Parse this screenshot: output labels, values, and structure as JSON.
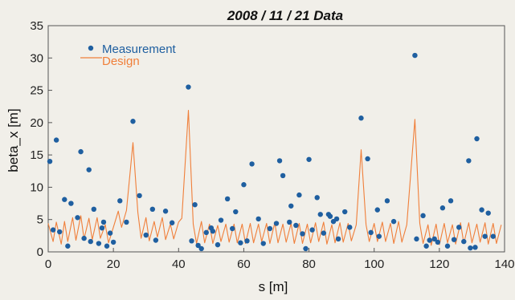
{
  "chart_data": {
    "type": "scatter",
    "title": "2008 / 11 / 21 Data",
    "xlabel": "s [m]",
    "ylabel": "beta_x [m]",
    "xlim": [
      0,
      140
    ],
    "ylim": [
      0,
      35
    ],
    "x_ticks": [
      0,
      20,
      40,
      60,
      80,
      100,
      120,
      140
    ],
    "y_ticks": [
      0,
      5,
      10,
      15,
      20,
      25,
      30,
      35
    ],
    "grid": false,
    "legend_position": "top-left",
    "series": [
      {
        "name": "Measurement",
        "kind": "scatter",
        "color": "#1f5fa0",
        "points": [
          [
            0.5,
            14
          ],
          [
            1.5,
            3.4
          ],
          [
            2.5,
            17.3
          ],
          [
            3.5,
            3.1
          ],
          [
            5,
            8.1
          ],
          [
            6,
            0.9
          ],
          [
            7,
            7.5
          ],
          [
            9,
            5.3
          ],
          [
            10,
            15.5
          ],
          [
            11,
            2.1
          ],
          [
            12.5,
            12.7
          ],
          [
            13,
            1.6
          ],
          [
            14,
            6.6
          ],
          [
            15.5,
            1.3
          ],
          [
            16.5,
            3.7
          ],
          [
            17,
            4.6
          ],
          [
            18,
            0.9
          ],
          [
            19,
            2.9
          ],
          [
            20,
            1.5
          ],
          [
            22,
            7.9
          ],
          [
            24,
            4.6
          ],
          [
            26,
            20.2
          ],
          [
            28,
            8.7
          ],
          [
            30,
            2.6
          ],
          [
            32,
            6.6
          ],
          [
            33,
            1.8
          ],
          [
            36,
            6.3
          ],
          [
            38,
            4.5
          ],
          [
            43,
            25.5
          ],
          [
            44,
            1.7
          ],
          [
            45,
            7.3
          ],
          [
            46,
            1.0
          ],
          [
            47,
            0.5
          ],
          [
            48.5,
            3.0
          ],
          [
            50,
            3.7
          ],
          [
            50.5,
            3.2
          ],
          [
            52,
            1.1
          ],
          [
            53,
            4.9
          ],
          [
            55,
            8.2
          ],
          [
            56.5,
            3.6
          ],
          [
            57.5,
            6.2
          ],
          [
            59,
            1.4
          ],
          [
            60,
            10.4
          ],
          [
            61,
            1.7
          ],
          [
            62.5,
            13.6
          ],
          [
            64.5,
            5.1
          ],
          [
            66,
            1.3
          ],
          [
            68,
            3.6
          ],
          [
            70,
            4.4
          ],
          [
            71,
            14.1
          ],
          [
            72,
            11.8
          ],
          [
            74,
            4.6
          ],
          [
            74.5,
            7.1
          ],
          [
            76,
            4.1
          ],
          [
            77,
            8.8
          ],
          [
            78,
            2.8
          ],
          [
            79,
            0.5
          ],
          [
            80,
            14.3
          ],
          [
            81,
            3.4
          ],
          [
            82.5,
            8.4
          ],
          [
            83.5,
            5.8
          ],
          [
            84.5,
            2.9
          ],
          [
            86,
            5.8
          ],
          [
            86.5,
            5.5
          ],
          [
            87.5,
            4.7
          ],
          [
            88.5,
            5.1
          ],
          [
            89,
            2.0
          ],
          [
            91,
            6.2
          ],
          [
            92.5,
            3.8
          ],
          [
            96,
            20.7
          ],
          [
            98,
            14.4
          ],
          [
            99,
            3.0
          ],
          [
            101,
            6.5
          ],
          [
            101.5,
            2.4
          ],
          [
            104,
            7.9
          ],
          [
            106,
            4.7
          ],
          [
            112.5,
            30.4
          ],
          [
            113,
            2.0
          ],
          [
            115,
            5.6
          ],
          [
            116,
            0.9
          ],
          [
            117,
            1.8
          ],
          [
            118.5,
            2.0
          ],
          [
            119.5,
            1.5
          ],
          [
            121,
            6.8
          ],
          [
            122.5,
            0.9
          ],
          [
            123.5,
            7.9
          ],
          [
            124.5,
            1.9
          ],
          [
            126,
            3.8
          ],
          [
            127.5,
            1.6
          ],
          [
            129,
            14.1
          ],
          [
            129.5,
            0.6
          ],
          [
            131,
            0.7
          ],
          [
            131.5,
            17.5
          ],
          [
            133,
            6.5
          ],
          [
            134,
            2.4
          ],
          [
            135,
            6.0
          ],
          [
            136.5,
            2.4
          ]
        ]
      },
      {
        "name": "Design",
        "kind": "line",
        "color": "#f07f3a",
        "x": [
          0,
          1.5,
          2.5,
          4,
          5,
          6,
          7.5,
          8.5,
          10,
          11,
          12.5,
          13.5,
          15,
          16,
          17.5,
          18.5,
          20,
          21.5,
          22.5,
          24,
          26,
          27.5,
          28.5,
          30,
          31,
          32.5,
          33.5,
          35,
          36,
          37.5,
          38.5,
          40,
          41,
          43,
          44.5,
          45.5,
          47,
          48,
          49.5,
          50.5,
          52,
          53,
          54.5,
          55.5,
          57,
          58,
          59.5,
          60.5,
          62,
          63,
          64.5,
          65.5,
          67,
          68,
          69.5,
          70.5,
          72,
          73,
          74.5,
          75.5,
          77,
          78,
          79.5,
          80.5,
          82,
          83,
          84.5,
          85.5,
          87,
          88,
          89.5,
          90.5,
          92,
          93,
          94.5,
          96,
          97.5,
          98.5,
          100,
          101,
          102.5,
          103.5,
          105,
          106,
          107.5,
          108.5,
          110,
          112.5,
          114,
          115,
          116.5,
          117.5,
          119,
          120,
          121.5,
          122.5,
          124,
          125,
          126.5,
          127.5,
          129,
          130,
          131.5,
          132.5,
          134,
          135,
          136.5,
          137.5,
          139
        ],
        "y": [
          4.4,
          1.6,
          4.6,
          1.2,
          4.7,
          1.6,
          5.3,
          1.8,
          5.6,
          2.0,
          5.2,
          1.9,
          5.3,
          2.1,
          4.2,
          1.4,
          3.8,
          6.3,
          3.8,
          6.4,
          16.9,
          6.1,
          2.1,
          5.3,
          1.7,
          4.7,
          2.3,
          5.3,
          1.9,
          4.3,
          2.0,
          4.6,
          5.2,
          21.9,
          4.3,
          1.3,
          4.7,
          1.4,
          4.3,
          1.3,
          4.1,
          1.6,
          4.3,
          1.5,
          4.3,
          1.4,
          4.3,
          1.3,
          4.4,
          1.4,
          4.3,
          1.6,
          4.4,
          1.3,
          4.5,
          1.4,
          4.3,
          1.5,
          4.4,
          1.3,
          4.4,
          1.3,
          4.3,
          1.4,
          4.5,
          1.6,
          4.6,
          1.2,
          4.2,
          1.4,
          4.5,
          1.5,
          4.4,
          1.7,
          4.2,
          15.8,
          4.2,
          1.6,
          4.4,
          1.6,
          4.6,
          1.6,
          4.4,
          1.3,
          4.7,
          1.5,
          4.2,
          20.5,
          4.4,
          1.3,
          4.2,
          1.0,
          4.3,
          1.1,
          4.4,
          1.4,
          4.2,
          1.2,
          4.5,
          1.3,
          4.5,
          1.4,
          4.3,
          1.5,
          4.5,
          1.2,
          4.4,
          1.3,
          4.2
        ]
      }
    ]
  }
}
